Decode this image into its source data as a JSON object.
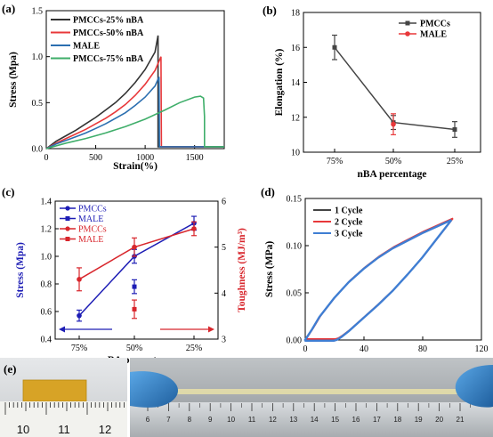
{
  "colors": {
    "black": "#333333",
    "red": "#e8383a",
    "blue": "#2b6fb0",
    "green": "#3fae6a",
    "navy": "#1d1db5",
    "crimson": "#d8262c",
    "gray": "#444444",
    "cycle_blue": "#3f7ed3"
  },
  "chart_data": [
    {
      "panel_label": "(a)",
      "type": "line",
      "xlabel": "Strain(%)",
      "ylabel": "Stress (Mpa)",
      "xlim": [
        0,
        1800
      ],
      "ylim": [
        0,
        1.5
      ],
      "xticks": [
        "0",
        "500",
        "1000",
        "1500"
      ],
      "yticks": [
        "0.0",
        "0.5",
        "1.0",
        "1.5"
      ],
      "legend_position": "top-left",
      "series": [
        {
          "name": "PMCCs-25% nBA",
          "color_key": "black",
          "x": [
            0,
            100,
            200,
            300,
            400,
            500,
            600,
            700,
            800,
            900,
            1000,
            1100,
            1130,
            1130,
            1800
          ],
          "y": [
            0,
            0.08,
            0.14,
            0.2,
            0.27,
            0.34,
            0.42,
            0.5,
            0.6,
            0.72,
            0.86,
            1.05,
            1.23,
            0.02,
            0.02
          ]
        },
        {
          "name": "PMCCs-50% nBA",
          "color_key": "red",
          "x": [
            0,
            100,
            200,
            300,
            400,
            500,
            600,
            700,
            800,
            900,
            1000,
            1100,
            1160,
            1165,
            1800
          ],
          "y": [
            0,
            0.06,
            0.11,
            0.16,
            0.21,
            0.27,
            0.33,
            0.4,
            0.48,
            0.58,
            0.7,
            0.85,
            1.0,
            0.02,
            0.02
          ]
        },
        {
          "name": "MALE",
          "color_key": "blue",
          "x": [
            0,
            100,
            200,
            300,
            400,
            500,
            600,
            700,
            800,
            900,
            1000,
            1100,
            1140,
            1145,
            1800
          ],
          "y": [
            0,
            0.05,
            0.09,
            0.13,
            0.17,
            0.22,
            0.27,
            0.33,
            0.39,
            0.47,
            0.56,
            0.68,
            0.78,
            0.02,
            0.02
          ]
        },
        {
          "name": "PMCCs-75% nBA",
          "color_key": "green",
          "x": [
            0,
            200,
            400,
            600,
            800,
            1000,
            1200,
            1350,
            1500,
            1560,
            1590,
            1600,
            1600,
            1800
          ],
          "y": [
            0,
            0.06,
            0.11,
            0.17,
            0.24,
            0.32,
            0.42,
            0.5,
            0.56,
            0.57,
            0.55,
            0.35,
            0.02,
            0.02
          ]
        }
      ]
    },
    {
      "panel_label": "(b)",
      "type": "line",
      "xlabel": "nBA percentage",
      "ylabel": "Elongation (%)",
      "categories": [
        "75%",
        "50%",
        "25%"
      ],
      "ylim": [
        10,
        18
      ],
      "yticks": [
        "10",
        "12",
        "14",
        "16",
        "18"
      ],
      "legend_position": "top-right",
      "series": [
        {
          "name": "PMCCs",
          "color_key": "gray",
          "values": [
            16.0,
            11.7,
            11.3
          ],
          "errors": [
            0.7,
            0.4,
            0.45
          ]
        },
        {
          "name": "MALE",
          "color_key": "red",
          "values": [
            null,
            11.6,
            null
          ],
          "errors": [
            null,
            0.6,
            null
          ]
        }
      ]
    },
    {
      "panel_label": "(c)",
      "type": "line",
      "xlabel": "nBA percentage",
      "ylabel": "Stress (Mpa)",
      "y2label": "Toughness (MJ/m³)",
      "categories": [
        "75%",
        "50%",
        "25%"
      ],
      "ylim": [
        0.4,
        1.4
      ],
      "y2lim": [
        3,
        6
      ],
      "yticks": [
        "0.4",
        "0.6",
        "0.8",
        "1.0",
        "1.2",
        "1.4"
      ],
      "y2ticks": [
        "3",
        "4",
        "5",
        "6"
      ],
      "legend_position": "top-left",
      "series": [
        {
          "name": "PMCCs",
          "axis": "left",
          "color_key": "navy",
          "values": [
            0.57,
            1.0,
            1.24
          ],
          "errors": [
            0.04,
            0.05,
            0.05
          ],
          "connected": true
        },
        {
          "name": "MALE",
          "axis": "left",
          "color_key": "navy",
          "values": [
            null,
            0.78,
            null
          ],
          "errors": [
            null,
            0.05,
            null
          ],
          "connected": false
        },
        {
          "name": "PMCCs",
          "axis": "right",
          "color_key": "crimson",
          "values": [
            4.3,
            5.0,
            5.4
          ],
          "errors": [
            0.25,
            0.2,
            0.15
          ],
          "connected": true
        },
        {
          "name": "MALE",
          "axis": "right",
          "color_key": "crimson",
          "values": [
            null,
            3.65,
            null
          ],
          "errors": [
            null,
            0.2,
            null
          ],
          "connected": false
        }
      ]
    },
    {
      "panel_label": "(d)",
      "type": "line",
      "xlabel": "Strain (%)",
      "ylabel": "Stress (MPa)",
      "xlim": [
        0,
        120
      ],
      "ylim": [
        0,
        0.15
      ],
      "xticks": [
        "0",
        "40",
        "80",
        "120"
      ],
      "yticks": [
        "0.00",
        "0.05",
        "0.10",
        "0.15"
      ],
      "legend_position": "top-left",
      "series": [
        {
          "name": "1 Cycle",
          "color_key": "gray"
        },
        {
          "name": "2 Cycle",
          "color_key": "red"
        },
        {
          "name": "3 Cycle",
          "color_key": "cycle_blue"
        }
      ],
      "loading_curve": {
        "x": [
          0,
          5,
          10,
          20,
          30,
          40,
          50,
          60,
          70,
          80,
          90,
          100
        ],
        "y": [
          0,
          0.012,
          0.025,
          0.045,
          0.062,
          0.076,
          0.088,
          0.098,
          0.106,
          0.114,
          0.121,
          0.128
        ]
      },
      "unloading_curve": {
        "x": [
          100,
          90,
          80,
          70,
          60,
          50,
          40,
          30,
          25,
          22,
          20,
          0
        ],
        "y": [
          0.128,
          0.108,
          0.088,
          0.07,
          0.053,
          0.038,
          0.024,
          0.01,
          0.004,
          0.001,
          0,
          0
        ]
      }
    }
  ],
  "photo": {
    "panel_label": "(e)",
    "ruler_left_numbers": [
      "10",
      "11",
      "12"
    ],
    "ruler_right_numbers": [
      "6",
      "7",
      "8",
      "9",
      "10",
      "11",
      "12",
      "13",
      "14",
      "15",
      "16",
      "17",
      "18",
      "19",
      "20",
      "21"
    ]
  }
}
